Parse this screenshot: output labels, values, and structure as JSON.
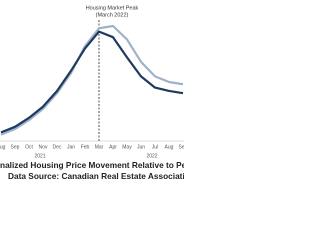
{
  "chart_data": {
    "type": "line",
    "annotation": [
      "Housing Market Peak",
      "(March 2022)"
    ],
    "peak_category": 7,
    "caption": [
      "nalized Housing Price Movement Relative to Peak – Categori",
      "Data Source: Canadian Real Estate Association (CREA)"
    ],
    "categories": [
      "Aug",
      "Sep",
      "Oct",
      "Nov",
      "Dec",
      "Jan",
      "Feb",
      "Mar",
      "Apr",
      "May",
      "Jun",
      "Jul",
      "Aug",
      "Sep"
    ],
    "year_labels": [
      "2021",
      "2022"
    ],
    "ylim": [
      0,
      100
    ],
    "series": [
      {
        "color": "#9fb2c8",
        "values": [
          3,
          8,
          16,
          26,
          40,
          58,
          82,
          98,
          100,
          88,
          68,
          55,
          50,
          48
        ]
      },
      {
        "color": "#1f3a5f",
        "values": [
          5,
          10,
          18,
          28,
          42,
          60,
          80,
          95,
          90,
          72,
          55,
          45,
          42,
          40
        ]
      }
    ]
  }
}
